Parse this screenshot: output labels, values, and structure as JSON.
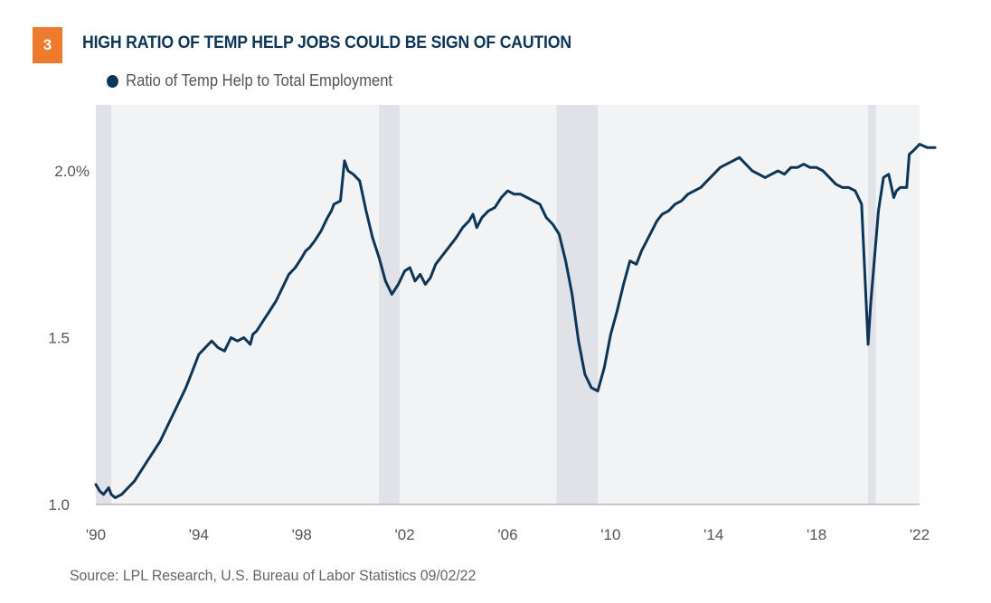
{
  "header": {
    "figure_number": "3",
    "title": "HIGH RATIO OF TEMP HELP JOBS COULD BE SIGN OF CAUTION"
  },
  "legend": {
    "label": "Ratio of Temp Help to Total Employment",
    "color": "#0d3558"
  },
  "source": "Source: LPL Research, U.S. Bureau of Labor Statistics 09/02/22",
  "colors": {
    "badge": "#ee7a2e",
    "title": "#0d3558",
    "line": "#0d3558",
    "plot_background": "#f1f3f5",
    "recession_band": "#e0e2e7"
  },
  "chart_data": {
    "type": "line",
    "title": "HIGH RATIO OF TEMP HELP JOBS COULD BE SIGN OF CAUTION",
    "xlabel": "",
    "ylabel": "",
    "xlim": [
      1990,
      2022
    ],
    "ylim": [
      1.0,
      2.2
    ],
    "x_ticks": [
      1990,
      1994,
      1998,
      2002,
      2006,
      2010,
      2014,
      2018,
      2022
    ],
    "x_tick_labels": [
      "'90",
      "'94",
      "'98",
      "'02",
      "'06",
      "'10",
      "'14",
      "'18",
      "'22"
    ],
    "y_ticks": [
      1.0,
      1.5,
      2.0
    ],
    "y_tick_labels": [
      "1.0",
      "1.5",
      "2.0%"
    ],
    "grid": false,
    "legend_position": "top-left",
    "recessions": [
      {
        "start": 1990.0,
        "end": 1990.6
      },
      {
        "start": 2001.0,
        "end": 2001.8
      },
      {
        "start": 2007.9,
        "end": 2009.5
      },
      {
        "start": 2020.0,
        "end": 2020.3
      }
    ],
    "series": [
      {
        "name": "Ratio of Temp Help to Total Employment",
        "x": [
          1990.0,
          1990.15,
          1990.3,
          1990.5,
          1990.6,
          1990.75,
          1991.0,
          1991.25,
          1991.5,
          1991.75,
          1992.0,
          1992.25,
          1992.5,
          1992.75,
          1993.0,
          1993.25,
          1993.5,
          1993.75,
          1994.0,
          1994.25,
          1994.5,
          1994.75,
          1995.0,
          1995.25,
          1995.5,
          1995.75,
          1996.0,
          1996.1,
          1996.25,
          1996.5,
          1996.75,
          1997.0,
          1997.25,
          1997.5,
          1997.75,
          1998.0,
          1998.15,
          1998.3,
          1998.5,
          1998.75,
          1999.0,
          1999.15,
          1999.25,
          1999.5,
          1999.66,
          1999.8,
          2000.0,
          2000.25,
          2000.5,
          2000.75,
          2001.0,
          2001.25,
          2001.5,
          2001.75,
          2002.0,
          2002.2,
          2002.4,
          2002.6,
          2002.8,
          2003.0,
          2003.2,
          2003.4,
          2003.6,
          2003.8,
          2004.0,
          2004.25,
          2004.5,
          2004.65,
          2004.8,
          2005.0,
          2005.25,
          2005.5,
          2005.75,
          2006.0,
          2006.25,
          2006.5,
          2006.75,
          2007.0,
          2007.25,
          2007.5,
          2007.75,
          2008.0,
          2008.25,
          2008.5,
          2008.75,
          2009.0,
          2009.25,
          2009.5,
          2009.75,
          2010.0,
          2010.25,
          2010.5,
          2010.75,
          2011.0,
          2011.2,
          2011.4,
          2011.6,
          2011.8,
          2012.0,
          2012.25,
          2012.5,
          2012.75,
          2013.0,
          2013.25,
          2013.5,
          2013.75,
          2014.0,
          2014.25,
          2014.5,
          2014.75,
          2015.0,
          2015.25,
          2015.5,
          2015.75,
          2016.0,
          2016.25,
          2016.5,
          2016.75,
          2017.0,
          2017.25,
          2017.5,
          2017.75,
          2018.0,
          2018.25,
          2018.5,
          2018.75,
          2019.0,
          2019.25,
          2019.5,
          2019.75,
          2020.0,
          2020.1,
          2020.25,
          2020.4,
          2020.6,
          2020.8,
          2021.0,
          2021.1,
          2021.25,
          2021.5,
          2021.6,
          2021.75,
          2022.0,
          2022.3,
          2022.6
        ],
        "values": [
          1.06,
          1.04,
          1.03,
          1.05,
          1.03,
          1.02,
          1.03,
          1.05,
          1.07,
          1.1,
          1.13,
          1.16,
          1.19,
          1.23,
          1.27,
          1.31,
          1.35,
          1.4,
          1.45,
          1.47,
          1.49,
          1.47,
          1.46,
          1.5,
          1.49,
          1.5,
          1.48,
          1.51,
          1.52,
          1.55,
          1.58,
          1.61,
          1.65,
          1.69,
          1.71,
          1.74,
          1.76,
          1.77,
          1.79,
          1.82,
          1.86,
          1.88,
          1.9,
          1.91,
          2.03,
          2.0,
          1.99,
          1.97,
          1.88,
          1.8,
          1.74,
          1.67,
          1.63,
          1.66,
          1.7,
          1.71,
          1.67,
          1.69,
          1.66,
          1.68,
          1.72,
          1.74,
          1.76,
          1.78,
          1.8,
          1.83,
          1.85,
          1.87,
          1.83,
          1.86,
          1.88,
          1.89,
          1.92,
          1.94,
          1.93,
          1.93,
          1.92,
          1.91,
          1.9,
          1.86,
          1.84,
          1.81,
          1.73,
          1.63,
          1.49,
          1.39,
          1.35,
          1.34,
          1.41,
          1.51,
          1.58,
          1.66,
          1.73,
          1.72,
          1.76,
          1.79,
          1.82,
          1.85,
          1.87,
          1.88,
          1.9,
          1.91,
          1.93,
          1.94,
          1.95,
          1.97,
          1.99,
          2.01,
          2.02,
          2.03,
          2.04,
          2.02,
          2.0,
          1.99,
          1.98,
          1.99,
          2.0,
          1.99,
          2.01,
          2.01,
          2.02,
          2.01,
          2.01,
          2.0,
          1.98,
          1.96,
          1.95,
          1.95,
          1.94,
          1.9,
          1.48,
          1.6,
          1.74,
          1.88,
          1.98,
          1.99,
          1.92,
          1.94,
          1.95,
          1.95,
          2.05,
          2.06,
          2.08,
          2.07,
          2.07
        ]
      }
    ]
  }
}
